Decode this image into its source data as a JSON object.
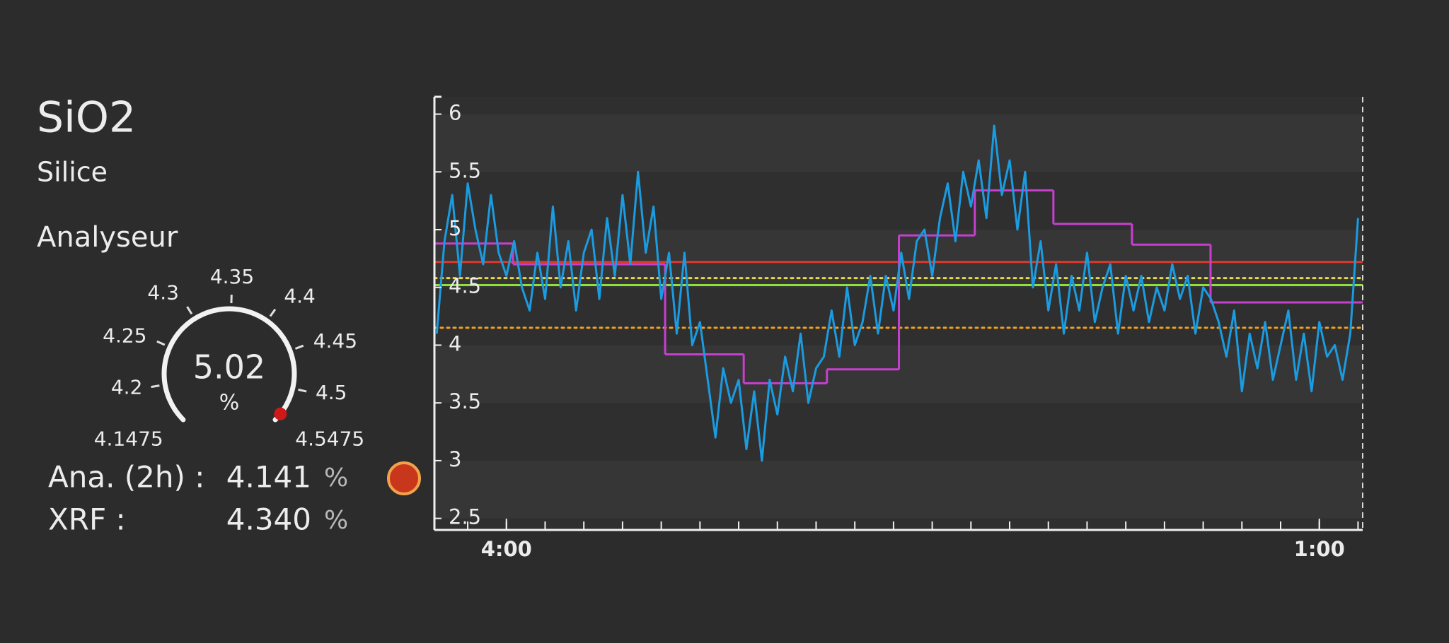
{
  "header": {
    "title": "SiO2",
    "subtitle": "Silice",
    "section": "Analyseur"
  },
  "gauge": {
    "ticks": [
      4.1475,
      4.2,
      4.25,
      4.3,
      4.35,
      4.4,
      4.45,
      4.5,
      4.5475
    ],
    "value": 5.02,
    "unit": "%"
  },
  "readings": [
    {
      "label": "Ana. (2h) :",
      "value": "4.141",
      "unit": "%"
    },
    {
      "label": "XRF :",
      "value": "4.340",
      "unit": "%"
    }
  ],
  "chart_data": {
    "type": "line",
    "xlim": [
      2.14,
      26.12
    ],
    "xticks": [
      {
        "value": 4,
        "label": "4:00"
      },
      {
        "value": 25,
        "label": "1:00"
      }
    ],
    "minor_xticks": [
      3,
      4,
      5,
      6,
      7,
      8,
      9,
      10,
      11,
      12,
      13,
      14,
      15,
      16,
      17,
      18,
      19,
      20,
      21,
      22,
      23,
      24,
      25,
      26
    ],
    "ylim": [
      2.4,
      6.15
    ],
    "yticks": [
      2.5,
      3,
      3.5,
      4,
      4.5,
      5,
      5.5,
      6
    ],
    "x": [
      2.2,
      2.4,
      2.6,
      2.8,
      3.0,
      3.2,
      3.4,
      3.6,
      3.8,
      4.0,
      4.2,
      4.4,
      4.6,
      4.8,
      5.0,
      5.2,
      5.4,
      5.6,
      5.8,
      6.0,
      6.2,
      6.4,
      6.6,
      6.8,
      7.0,
      7.2,
      7.4,
      7.6,
      7.8,
      8.0,
      8.2,
      8.4,
      8.6,
      8.8,
      9.0,
      9.2,
      9.4,
      9.6,
      9.8,
      10.0,
      10.2,
      10.4,
      10.6,
      10.8,
      11.0,
      11.2,
      11.4,
      11.6,
      11.8,
      12.0,
      12.2,
      12.4,
      12.6,
      12.8,
      13.0,
      13.2,
      13.4,
      13.6,
      13.8,
      14.0,
      14.2,
      14.4,
      14.6,
      14.8,
      15.0,
      15.2,
      15.4,
      15.6,
      15.8,
      16.0,
      16.2,
      16.4,
      16.6,
      16.8,
      17.0,
      17.2,
      17.4,
      17.6,
      17.8,
      18.0,
      18.2,
      18.4,
      18.6,
      18.8,
      19.0,
      19.2,
      19.4,
      19.6,
      19.8,
      20.0,
      20.2,
      20.4,
      20.6,
      20.8,
      21.0,
      21.2,
      21.4,
      21.6,
      21.8,
      22.0,
      22.2,
      22.4,
      22.6,
      22.8,
      23.0,
      23.2,
      23.4,
      23.6,
      23.8,
      24.0,
      24.2,
      24.4,
      24.6,
      24.8,
      25.0,
      25.2,
      25.4,
      25.6,
      25.8,
      26.0
    ],
    "series": [
      {
        "color": "#1b9be0",
        "values": [
          4.1,
          4.9,
          5.3,
          4.6,
          5.4,
          5.0,
          4.7,
          5.3,
          4.8,
          4.6,
          4.9,
          4.5,
          4.3,
          4.8,
          4.4,
          5.2,
          4.5,
          4.9,
          4.3,
          4.8,
          5.0,
          4.4,
          5.1,
          4.6,
          5.3,
          4.7,
          5.5,
          4.8,
          5.2,
          4.4,
          4.8,
          4.1,
          4.8,
          4.0,
          4.2,
          3.7,
          3.2,
          3.8,
          3.5,
          3.7,
          3.1,
          3.6,
          3.0,
          3.7,
          3.4,
          3.9,
          3.6,
          4.1,
          3.5,
          3.8,
          3.9,
          4.3,
          3.9,
          4.5,
          4.0,
          4.2,
          4.6,
          4.1,
          4.6,
          4.3,
          4.8,
          4.4,
          4.9,
          5.0,
          4.6,
          5.1,
          5.4,
          4.9,
          5.5,
          5.2,
          5.6,
          5.1,
          5.9,
          5.3,
          5.6,
          5.0,
          5.5,
          4.5,
          4.9,
          4.3,
          4.7,
          4.1,
          4.6,
          4.3,
          4.8,
          4.2,
          4.5,
          4.7,
          4.1,
          4.6,
          4.3,
          4.6,
          4.2,
          4.5,
          4.3,
          4.7,
          4.4,
          4.6,
          4.1,
          4.5,
          4.4,
          4.2,
          3.9,
          4.3,
          3.6,
          4.1,
          3.8,
          4.2,
          3.7,
          4.0,
          4.3,
          3.7,
          4.1,
          3.6,
          4.2,
          3.9,
          4.0,
          3.7,
          4.1,
          5.1
        ]
      }
    ],
    "step_series": [
      {
        "color": "#c83fd0",
        "x": [
          2.14,
          4.17,
          8.1,
          10.13,
          12.28,
          14.14,
          16.1,
          18.13,
          20.16,
          22.19
        ],
        "values": [
          4.88,
          4.7,
          3.92,
          3.67,
          3.79,
          4.95,
          5.34,
          5.05,
          4.87,
          4.37
        ]
      }
    ],
    "reference_lines": [
      {
        "value": 4.72,
        "color": "#d83a2e",
        "style": "solid"
      },
      {
        "value": 4.58,
        "color": "#e8d84a",
        "style": "dotted"
      },
      {
        "value": 4.52,
        "color": "#8fe03a",
        "style": "solid"
      },
      {
        "value": 4.15,
        "color": "#f0a020",
        "style": "dotted"
      }
    ]
  }
}
